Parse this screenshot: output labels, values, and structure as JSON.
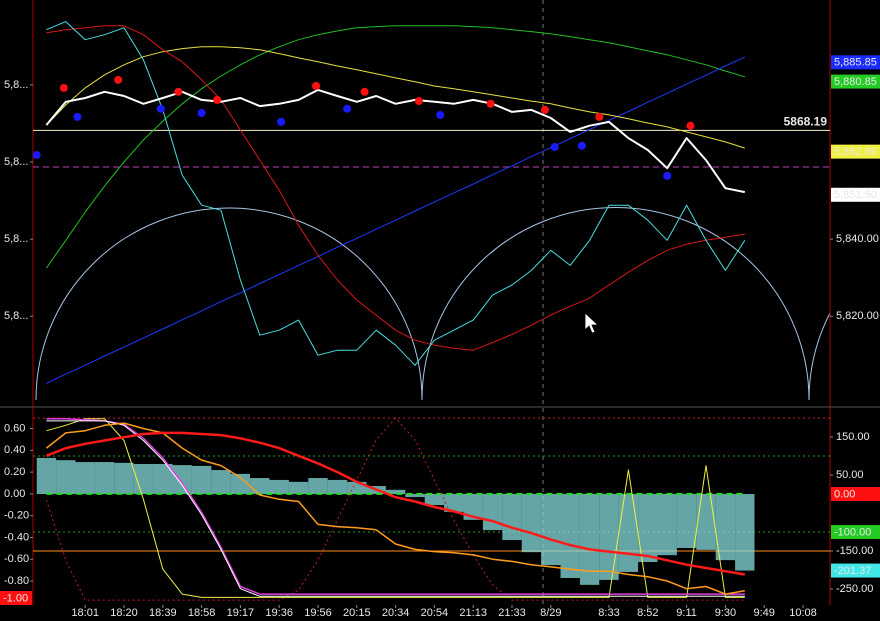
{
  "chart_data": [
    {
      "type": "line",
      "ylim": [
        5797,
        5902
      ],
      "yticks": [
        {
          "value": 5880,
          "label": "5,8..."
        },
        {
          "value": 5860,
          "label": "5,8..."
        },
        {
          "value": 5840,
          "label": "5,8..."
        },
        {
          "value": 5820,
          "label": "5,8..."
        }
      ],
      "y2lim": [
        5797,
        5902
      ],
      "y2ticks": [
        {
          "value": 5840,
          "label": "5,840.00"
        },
        {
          "value": 5820,
          "label": "5,820.00"
        }
      ],
      "tags": [
        {
          "value": 5885.85,
          "label": "5,885.85",
          "color": "#1a2cff",
          "axis": "y2"
        },
        {
          "value": 5880.85,
          "label": "5,880.85",
          "color": "#22cc22",
          "axis": "y2"
        },
        {
          "value": 5862.69,
          "label": "5,862.69",
          "color": "#f0f040",
          "axis": "y2"
        },
        {
          "value": 5851.5,
          "label": "5,851.50",
          "color": "#ffffff",
          "axis": "y2"
        }
      ],
      "levels": [
        {
          "value": 5868.19,
          "color": "#f4f0c8",
          "style": "solid",
          "labeled": true
        },
        {
          "value": 5858.7,
          "color": "#c040c0",
          "style": "dashed"
        }
      ],
      "series": [
        {
          "color": "#20c020",
          "width": 1,
          "values": [
            5832.5,
            5839.7,
            5847.0,
            5853.8,
            5860.0,
            5865.7,
            5870.6,
            5875.1,
            5879.0,
            5882.3,
            5885.2,
            5887.8,
            5889.9,
            5891.7,
            5893.0,
            5894.0,
            5894.8,
            5895.1,
            5895.3,
            5895.3,
            5895.3,
            5895.3,
            5895.1,
            5894.8,
            5894.3,
            5893.8,
            5893.2,
            5892.5,
            5891.7,
            5890.9,
            5889.9,
            5888.8,
            5887.8,
            5886.5,
            5885.2,
            5883.6,
            5882.1,
            null,
            null,
            null,
            null
          ]
        },
        {
          "color": "#2038ff",
          "width": 1,
          "values": [
            5802.6,
            5805.0,
            5807.3,
            5809.7,
            5812.0,
            5814.4,
            5816.7,
            5819.1,
            5821.4,
            5823.8,
            5826.1,
            5828.5,
            5830.8,
            5833.2,
            5835.5,
            5837.9,
            5840.2,
            5842.6,
            5844.9,
            5847.3,
            5849.6,
            5852.0,
            5854.3,
            5856.7,
            5859.0,
            5861.4,
            5863.7,
            5866.1,
            5868.4,
            5870.8,
            5873.1,
            5875.5,
            5877.8,
            5880.2,
            5882.5,
            5884.9,
            5887.2,
            null,
            null,
            null,
            null
          ]
        },
        {
          "color": "#e8e040",
          "width": 1,
          "values": [
            5869.6,
            5874.8,
            5879.2,
            5882.6,
            5885.2,
            5887.3,
            5888.6,
            5889.4,
            5889.9,
            5889.9,
            5889.6,
            5889.1,
            5888.1,
            5887.0,
            5886.0,
            5884.9,
            5883.9,
            5882.9,
            5881.8,
            5880.8,
            5879.7,
            5879.0,
            5878.2,
            5877.4,
            5876.6,
            5875.8,
            5875.1,
            5874.0,
            5873.0,
            5872.2,
            5871.2,
            5870.1,
            5869.1,
            5867.8,
            5866.5,
            5865.2,
            5863.6,
            null,
            null,
            null,
            null
          ]
        },
        {
          "color": "#d81818",
          "width": 1,
          "values": [
            5893.5,
            5894.3,
            5894.8,
            5895.3,
            5895.3,
            5893.0,
            5889.1,
            5886.0,
            5881.3,
            5876.1,
            5868.3,
            5860.5,
            5852.7,
            5843.6,
            5835.8,
            5829.4,
            5824.2,
            5820.3,
            5816.4,
            5813.8,
            5812.5,
            5811.7,
            5811.2,
            5813.2,
            5815.3,
            5817.7,
            5820.3,
            5822.6,
            5824.7,
            5828.1,
            5831.4,
            5834.5,
            5837.1,
            5838.7,
            5839.7,
            5840.5,
            5841.3,
            null,
            null,
            null,
            null
          ]
        },
        {
          "color": "#48e0e0",
          "width": 1,
          "values": [
            5894.3,
            5896.4,
            5891.7,
            5893.0,
            5894.8,
            5886.5,
            5873.5,
            5856.6,
            5848.8,
            5847.5,
            5829.4,
            5815.1,
            5816.4,
            5819.0,
            5809.9,
            5811.2,
            5811.2,
            5816.4,
            5812.5,
            5807.3,
            5813.8,
            5816.4,
            5819.0,
            5825.5,
            5828.1,
            5831.9,
            5837.1,
            5833.2,
            5839.7,
            5848.8,
            5848.8,
            5844.9,
            5839.7,
            5848.8,
            5839.7,
            5831.9,
            5839.7,
            null,
            null,
            null,
            null
          ]
        },
        {
          "color": "#ffffff",
          "width": 2,
          "values": [
            5869.6,
            5875.6,
            5876.6,
            5878.2,
            5877.1,
            5875.1,
            5876.6,
            5878.2,
            5876.1,
            5875.6,
            5876.6,
            5874.5,
            5875.1,
            5876.1,
            5878.7,
            5877.1,
            5875.6,
            5877.1,
            5875.1,
            5876.1,
            5875.6,
            5875.1,
            5876.1,
            5875.1,
            5873.0,
            5873.5,
            5871.4,
            5867.8,
            5869.4,
            5870.4,
            5866.2,
            5863.1,
            5858.4,
            5866.2,
            5860.5,
            5853.2,
            5852.2,
            null,
            null,
            null,
            null
          ]
        }
      ],
      "markers": [
        {
          "color": "#ff1010",
          "x": [
            0.9,
            3.7,
            6.8,
            8.8,
            13.9,
            16.4,
            19.2,
            22.9,
            25.7,
            28.5,
            33.2
          ],
          "values": [
            5879.2,
            5881.3,
            5878.2,
            5876.1,
            5879.7,
            5878.2,
            5875.8,
            5875.1,
            5873.5,
            5871.7,
            5869.4
          ]
        },
        {
          "color": "#1a1aff",
          "x": [
            -0.5,
            1.6,
            5.9,
            8.0,
            12.1,
            15.5,
            20.3,
            26.2,
            27.6,
            32.0
          ],
          "values": [
            5861.8,
            5871.7,
            5873.8,
            5872.7,
            5870.4,
            5873.8,
            5872.2,
            5863.9,
            5864.2,
            5856.4
          ]
        }
      ]
    },
    {
      "type": "line",
      "categories": [
        null,
        null,
        "18:01",
        null,
        "18:20",
        null,
        "18:39",
        null,
        "18:58",
        null,
        "19:17",
        null,
        "19:36",
        null,
        "19:56",
        null,
        "20:15",
        null,
        "20:34",
        null,
        "20:54",
        null,
        "21:13",
        null,
        "21:33",
        null,
        "8/29",
        null,
        null,
        "8:33",
        null,
        "8:52",
        null,
        "9:11",
        null,
        "9:30",
        null,
        "9:49",
        null,
        "10:08",
        null
      ],
      "ylim": [
        -1.02,
        0.77
      ],
      "yticks": [
        {
          "value": 0.6,
          "label": "0.60"
        },
        {
          "value": 0.4,
          "label": "0.40"
        },
        {
          "value": 0.2,
          "label": "0.20"
        },
        {
          "value": 0,
          "label": "0.00"
        },
        {
          "value": -0.2,
          "label": "-0.20"
        },
        {
          "value": -0.4,
          "label": "-0.40"
        },
        {
          "value": -0.6,
          "label": "-0.60"
        },
        {
          "value": -0.8,
          "label": "-0.80"
        }
      ],
      "y2lim": [
        -292,
        221
      ],
      "y2ticks": [
        {
          "value": 150,
          "label": "150.00"
        },
        {
          "value": 50,
          "label": "50.00"
        },
        {
          "value": -150,
          "label": "-150.00"
        },
        {
          "value": -250,
          "label": "-250.00"
        }
      ],
      "tags": [
        {
          "value": -1,
          "label": "-1.00",
          "color": "#ff1010",
          "axis": "y"
        },
        {
          "value": 0,
          "label": "0.00",
          "color": "#ff1010",
          "axis": "y2"
        },
        {
          "value": -100,
          "label": "-100.00",
          "color": "#22cc22",
          "axis": "y2"
        },
        {
          "value": -201.37,
          "label": "-201.37",
          "color": "#40e8e8",
          "axis": "y2"
        }
      ],
      "levels": [
        {
          "value": 200,
          "color": "#c02020",
          "style": "dotted",
          "axis": "y2"
        },
        {
          "value": 100,
          "color": "#20a020",
          "style": "dotted",
          "axis": "y2"
        },
        {
          "value": -100,
          "color": "#20a020",
          "style": "dotted",
          "axis": "y2"
        },
        {
          "value": -150,
          "color": "#ff8c1a",
          "style": "solid",
          "axis": "y2"
        }
      ],
      "series": [
        {
          "type": "bar",
          "axis": "y2",
          "color": "#88dcdc",
          "values": [
            95,
            89,
            84,
            84,
            82,
            79,
            79,
            76,
            74,
            63,
            53,
            42,
            37,
            32,
            42,
            37,
            32,
            21,
            11,
            -8,
            -29,
            -47,
            -68,
            -95,
            -121,
            -153,
            -187,
            -221,
            -239,
            -226,
            -205,
            -179,
            -161,
            -142,
            -147,
            -174,
            -201.37,
            null,
            null,
            null,
            null
          ]
        },
        {
          "color": "#20e020",
          "width": 2,
          "style": "dashed",
          "values": [
            0,
            0,
            0,
            0,
            0,
            0,
            0,
            0,
            0,
            0,
            0,
            0,
            0,
            0,
            0,
            0,
            0,
            0,
            0,
            0,
            0,
            0,
            0,
            0,
            0,
            0,
            0,
            0,
            0,
            0,
            0,
            0,
            0,
            0,
            0,
            0,
            0,
            null,
            null,
            null,
            null
          ]
        },
        {
          "axis": "y2",
          "color": "#c82020",
          "width": 1,
          "style": "dotted",
          "values": [
            -16,
            -174,
            -279,
            -279,
            -279,
            -279,
            -279,
            -279,
            -279,
            -279,
            -279,
            -279,
            -279,
            -253,
            -174,
            -68,
            37,
            142,
            200,
            142,
            37,
            -68,
            -161,
            -239,
            -279,
            -279,
            -279,
            -279,
            -279,
            -279,
            -279,
            -279,
            -279,
            -279,
            -279,
            -279,
            -279,
            null,
            null,
            null,
            null
          ]
        },
        {
          "color": "#f0f040",
          "width": 1,
          "values": [
            0.58,
            0.63,
            0.69,
            0.69,
            0.49,
            -0.05,
            -0.69,
            -0.92,
            -0.95,
            -0.95,
            -0.95,
            -0.95,
            -0.95,
            -0.95,
            -0.95,
            -0.95,
            -0.95,
            -0.95,
            -0.95,
            -0.95,
            -0.95,
            -0.95,
            -0.95,
            -0.95,
            -0.95,
            -0.95,
            -0.95,
            -0.95,
            -0.95,
            -0.95,
            0.22,
            -0.95,
            -0.95,
            -0.95,
            0.26,
            -0.95,
            -0.95,
            null,
            null,
            null,
            null
          ]
        },
        {
          "color": "#e040e0",
          "width": 1.5,
          "values": [
            0.69,
            0.69,
            0.68,
            0.67,
            0.64,
            0.51,
            0.33,
            0.1,
            -0.17,
            -0.49,
            -0.85,
            -0.92,
            -0.92,
            -0.92,
            -0.92,
            -0.92,
            -0.92,
            -0.92,
            -0.92,
            -0.92,
            -0.92,
            -0.92,
            -0.92,
            -0.92,
            -0.92,
            -0.92,
            -0.92,
            -0.92,
            -0.92,
            -0.92,
            -0.92,
            -0.92,
            -0.92,
            -0.92,
            -0.92,
            -0.92,
            -0.92,
            null,
            null,
            null,
            null
          ]
        },
        {
          "color": "#ffffff",
          "width": 1,
          "values": [
            0.67,
            0.67,
            0.67,
            0.67,
            0.63,
            0.49,
            0.31,
            0.08,
            -0.19,
            -0.51,
            -0.87,
            -0.94,
            -0.94,
            -0.94,
            -0.94,
            -0.94,
            -0.94,
            -0.94,
            -0.94,
            -0.94,
            -0.94,
            -0.94,
            -0.94,
            -0.94,
            -0.94,
            -0.94,
            -0.94,
            -0.94,
            -0.94,
            -0.94,
            -0.94,
            -0.94,
            -0.94,
            -0.94,
            -0.94,
            -0.94,
            -0.94,
            null,
            null,
            null,
            null
          ]
        },
        {
          "color": "#ff9c1a",
          "width": 1.5,
          "values": [
            0.42,
            0.56,
            0.58,
            0.63,
            0.65,
            0.6,
            0.56,
            0.42,
            0.31,
            0.26,
            0.15,
            -0.01,
            -0.05,
            -0.07,
            -0.28,
            -0.3,
            -0.31,
            -0.33,
            -0.46,
            -0.51,
            -0.53,
            -0.54,
            -0.56,
            -0.6,
            -0.62,
            -0.65,
            -0.67,
            -0.69,
            -0.71,
            -0.71,
            -0.74,
            -0.76,
            -0.8,
            -0.87,
            -0.85,
            -0.92,
            -0.89,
            null,
            null,
            null,
            null
          ]
        },
        {
          "color": "#ff1a1a",
          "width": 2.5,
          "values": [
            0.35,
            0.42,
            0.46,
            0.49,
            0.52,
            0.55,
            0.56,
            0.56,
            0.55,
            0.54,
            0.51,
            0.47,
            0.42,
            0.35,
            0.28,
            0.2,
            0.11,
            0.04,
            -0.03,
            -0.07,
            -0.12,
            -0.16,
            -0.21,
            -0.25,
            -0.31,
            -0.36,
            -0.42,
            -0.47,
            -0.51,
            -0.53,
            -0.55,
            -0.57,
            -0.61,
            -0.65,
            -0.68,
            -0.71,
            -0.74,
            null,
            null,
            null,
            null
          ]
        }
      ]
    }
  ]
}
